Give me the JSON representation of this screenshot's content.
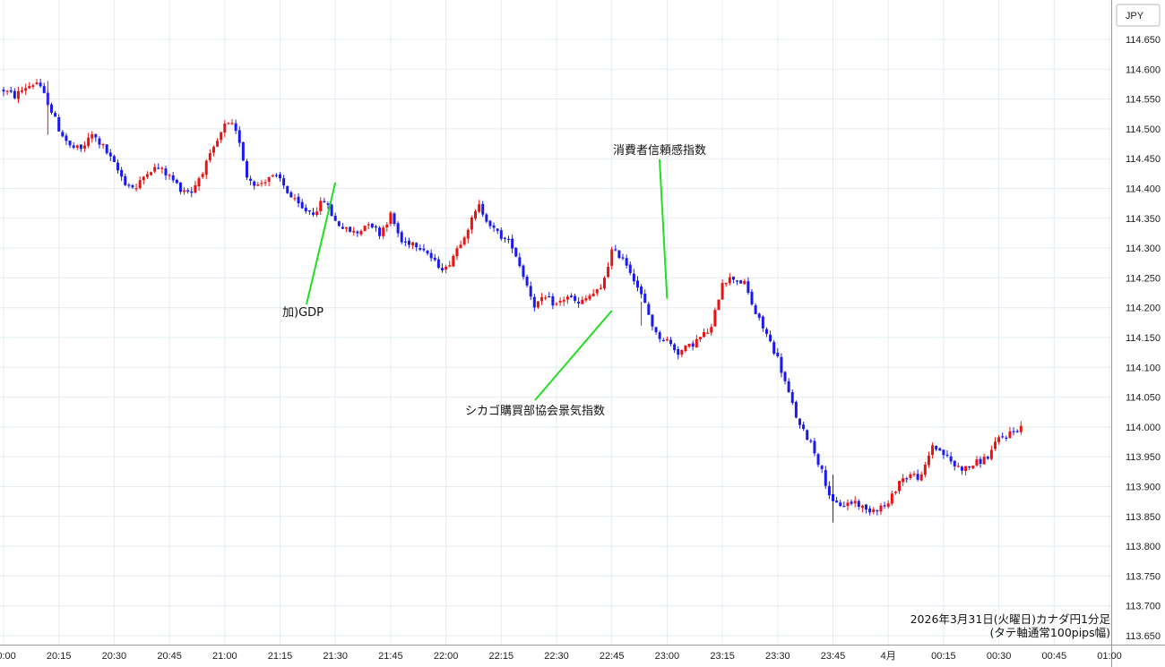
{
  "chart_data": {
    "type": "candlestick",
    "currency_label": "JPY",
    "caption_line1": "2026年3月31日(火曜日)カナダ円1分足",
    "caption_line2": "(タテ軸通常100pips幅)",
    "y_ticks": [
      "114.650",
      "114.600",
      "114.550",
      "114.500",
      "114.450",
      "114.400",
      "114.350",
      "114.300",
      "114.250",
      "114.200",
      "114.150",
      "114.100",
      "114.050",
      "114.000",
      "113.950",
      "113.900",
      "113.850",
      "113.800",
      "113.750",
      "113.700",
      "113.650"
    ],
    "x_ticks": [
      "20:00",
      "20:15",
      "20:30",
      "20:45",
      "21:00",
      "21:15",
      "21:30",
      "21:45",
      "22:00",
      "22:15",
      "22:30",
      "22:45",
      "23:00",
      "23:15",
      "23:30",
      "23:45",
      "4月",
      "00:15",
      "00:30",
      "00:45",
      "01:00"
    ],
    "ylim": [
      113.64,
      114.675
    ],
    "up_color": "#ee1111",
    "down_color": "#1a1aee",
    "annotation_color": "#22dd22",
    "annotations": [
      {
        "label": "加)GDP",
        "anchor_time": "21:30",
        "anchor_price": 114.41
      },
      {
        "label": "シカゴ購買部協会景気指数",
        "anchor_time": "22:45",
        "anchor_price": 114.195
      },
      {
        "label": "消費者信頼感指数",
        "anchor_time": "23:00",
        "anchor_price": 114.215
      }
    ],
    "close_path": [
      [
        0,
        114.565
      ],
      [
        3,
        114.555
      ],
      [
        6,
        114.57
      ],
      [
        9,
        114.578
      ],
      [
        12,
        114.545
      ],
      [
        15,
        114.5
      ],
      [
        18,
        114.47
      ],
      [
        21,
        114.465
      ],
      [
        24,
        114.49
      ],
      [
        27,
        114.47
      ],
      [
        30,
        114.44
      ],
      [
        33,
        114.41
      ],
      [
        36,
        114.4
      ],
      [
        39,
        114.43
      ],
      [
        42,
        114.435
      ],
      [
        45,
        114.42
      ],
      [
        48,
        114.4
      ],
      [
        51,
        114.395
      ],
      [
        54,
        114.43
      ],
      [
        57,
        114.465
      ],
      [
        60,
        114.505
      ],
      [
        62,
        114.505
      ],
      [
        64,
        114.48
      ],
      [
        66,
        114.42
      ],
      [
        69,
        114.405
      ],
      [
        72,
        114.42
      ],
      [
        75,
        114.415
      ],
      [
        78,
        114.385
      ],
      [
        81,
        114.365
      ],
      [
        84,
        114.36
      ],
      [
        87,
        114.38
      ],
      [
        90,
        114.345
      ],
      [
        93,
        114.33
      ],
      [
        96,
        114.325
      ],
      [
        99,
        114.345
      ],
      [
        102,
        114.325
      ],
      [
        105,
        114.355
      ],
      [
        108,
        114.31
      ],
      [
        111,
        114.31
      ],
      [
        114,
        114.3
      ],
      [
        117,
        114.275
      ],
      [
        120,
        114.265
      ],
      [
        123,
        114.3
      ],
      [
        126,
        114.335
      ],
      [
        129,
        114.37
      ],
      [
        131,
        114.35
      ],
      [
        133,
        114.33
      ],
      [
        135,
        114.32
      ],
      [
        138,
        114.305
      ],
      [
        141,
        114.255
      ],
      [
        144,
        114.205
      ],
      [
        147,
        114.215
      ],
      [
        150,
        114.205
      ],
      [
        153,
        114.22
      ],
      [
        156,
        114.205
      ],
      [
        159,
        114.22
      ],
      [
        162,
        114.23
      ],
      [
        165,
        114.295
      ],
      [
        168,
        114.285
      ],
      [
        171,
        114.25
      ],
      [
        174,
        114.205
      ],
      [
        177,
        114.155
      ],
      [
        180,
        114.145
      ],
      [
        183,
        114.125
      ],
      [
        186,
        114.135
      ],
      [
        189,
        114.15
      ],
      [
        192,
        114.165
      ],
      [
        195,
        114.245
      ],
      [
        198,
        114.25
      ],
      [
        201,
        114.24
      ],
      [
        204,
        114.19
      ],
      [
        207,
        114.155
      ],
      [
        210,
        114.115
      ],
      [
        213,
        114.055
      ],
      [
        216,
        114.0
      ],
      [
        219,
        113.975
      ],
      [
        222,
        113.925
      ],
      [
        225,
        113.87
      ],
      [
        228,
        113.87
      ],
      [
        231,
        113.875
      ],
      [
        234,
        113.86
      ],
      [
        237,
        113.865
      ],
      [
        240,
        113.87
      ],
      [
        243,
        113.91
      ],
      [
        246,
        113.92
      ],
      [
        249,
        113.915
      ],
      [
        252,
        113.97
      ],
      [
        255,
        113.955
      ],
      [
        258,
        113.935
      ],
      [
        261,
        113.93
      ],
      [
        264,
        113.94
      ],
      [
        267,
        113.95
      ],
      [
        270,
        113.98
      ],
      [
        273,
        113.99
      ],
      [
        276,
        114.0
      ]
    ]
  }
}
